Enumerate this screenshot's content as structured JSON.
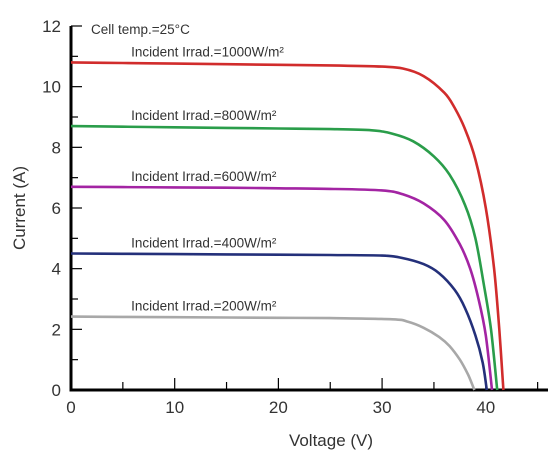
{
  "chart_data": {
    "type": "line",
    "xlabel": "Voltage (V)",
    "ylabel": "Current (A)",
    "xlim": [
      0,
      46
    ],
    "ylim": [
      0,
      12
    ],
    "xticks": [
      "0",
      "10",
      "20",
      "30",
      "40"
    ],
    "yticks": [
      "0",
      "2",
      "4",
      "6",
      "8",
      "10",
      "12"
    ],
    "grid": false,
    "annotations": [
      {
        "text": "Cell temp.=25°C"
      }
    ],
    "series": [
      {
        "name": "Incident Irrad.=1000W/m²",
        "color": "#d12c2c",
        "points": [
          [
            0,
            10.8
          ],
          [
            5,
            10.78
          ],
          [
            10,
            10.76
          ],
          [
            15,
            10.74
          ],
          [
            20,
            10.72
          ],
          [
            25,
            10.7
          ],
          [
            30,
            10.66
          ],
          [
            32,
            10.6
          ],
          [
            34,
            10.35
          ],
          [
            36,
            9.8
          ],
          [
            37,
            9.3
          ],
          [
            38,
            8.6
          ],
          [
            39,
            7.6
          ],
          [
            40,
            6.0
          ],
          [
            40.8,
            4.0
          ],
          [
            41.3,
            2.0
          ],
          [
            41.7,
            0
          ]
        ]
      },
      {
        "name": "Incident Irrad.=800W/m²",
        "color": "#2a9d4a",
        "points": [
          [
            0,
            8.7
          ],
          [
            5,
            8.68
          ],
          [
            10,
            8.66
          ],
          [
            15,
            8.64
          ],
          [
            20,
            8.62
          ],
          [
            25,
            8.6
          ],
          [
            29,
            8.56
          ],
          [
            31,
            8.45
          ],
          [
            33,
            8.2
          ],
          [
            35,
            7.7
          ],
          [
            36.5,
            7.1
          ],
          [
            38,
            6.1
          ],
          [
            39,
            5.0
          ],
          [
            39.8,
            3.5
          ],
          [
            40.5,
            2.0
          ],
          [
            41.1,
            0
          ]
        ]
      },
      {
        "name": "Incident Irrad.=600W/m²",
        "color": "#a324a3",
        "points": [
          [
            0,
            6.7
          ],
          [
            5,
            6.69
          ],
          [
            10,
            6.68
          ],
          [
            15,
            6.67
          ],
          [
            20,
            6.65
          ],
          [
            25,
            6.63
          ],
          [
            30,
            6.58
          ],
          [
            32,
            6.45
          ],
          [
            34,
            6.15
          ],
          [
            36,
            5.6
          ],
          [
            37.5,
            4.8
          ],
          [
            38.5,
            4.0
          ],
          [
            39.3,
            3.0
          ],
          [
            40,
            1.8
          ],
          [
            40.6,
            0
          ]
        ]
      },
      {
        "name": "Incident Irrad.=400W/m²",
        "color": "#24307a",
        "points": [
          [
            0,
            4.5
          ],
          [
            5,
            4.49
          ],
          [
            10,
            4.48
          ],
          [
            15,
            4.47
          ],
          [
            20,
            4.46
          ],
          [
            25,
            4.45
          ],
          [
            30,
            4.43
          ],
          [
            32,
            4.35
          ],
          [
            34,
            4.15
          ],
          [
            35.5,
            3.85
          ],
          [
            37,
            3.3
          ],
          [
            38,
            2.7
          ],
          [
            39,
            1.8
          ],
          [
            39.7,
            0.9
          ],
          [
            40.1,
            0
          ]
        ]
      },
      {
        "name": "Incident Irrad.=200W/m²",
        "color": "#a8a8a8",
        "points": [
          [
            0,
            2.42
          ],
          [
            5,
            2.41
          ],
          [
            10,
            2.4
          ],
          [
            15,
            2.39
          ],
          [
            20,
            2.38
          ],
          [
            25,
            2.37
          ],
          [
            31,
            2.33
          ],
          [
            32.5,
            2.25
          ],
          [
            34,
            2.05
          ],
          [
            35.5,
            1.75
          ],
          [
            36.5,
            1.45
          ],
          [
            37.5,
            1.0
          ],
          [
            38.3,
            0.5
          ],
          [
            38.9,
            0
          ]
        ]
      }
    ]
  }
}
